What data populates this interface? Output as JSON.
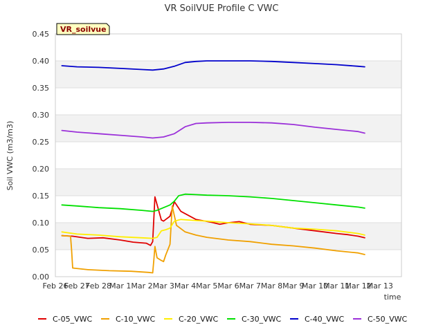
{
  "chart_data": {
    "type": "line",
    "title": "VR SoilVUE Profile C VWC",
    "xlabel": "time",
    "ylabel": "Soil VWC (m3/m3)",
    "badge": "VR_soilvue",
    "ylim": [
      0,
      0.45
    ],
    "xlim": [
      0,
      16
    ],
    "yticks": [
      0,
      0.05,
      0.1,
      0.15,
      0.2,
      0.25,
      0.3,
      0.35,
      0.4,
      0.45
    ],
    "ytick_labels": [
      "0.00",
      "0.05",
      "0.10",
      "0.15",
      "0.20",
      "0.25",
      "0.30",
      "0.35",
      "0.40",
      "0.45"
    ],
    "xticks": [
      0,
      1,
      2,
      3,
      4,
      5,
      6,
      7,
      8,
      9,
      10,
      11,
      12,
      13,
      14,
      15
    ],
    "xtick_labels": [
      "Feb 26",
      "Feb 27",
      "Feb 28",
      "Mar 1",
      "Mar 2",
      "Mar 3",
      "Mar 4",
      "Mar 5",
      "Mar 6",
      "Mar 7",
      "Mar 8",
      "Mar 9",
      "Mar 10",
      "Mar 11",
      "Mar 12",
      "Mar 13"
    ],
    "series": [
      {
        "name": "C-05_VWC",
        "color": "#e00000",
        "x": [
          0.3,
          0.8,
          1.5,
          2.2,
          3.0,
          3.6,
          4.2,
          4.3,
          4.4,
          4.5,
          4.6,
          4.9,
          5.0,
          5.1,
          5.3,
          5.5,
          5.8,
          6.5,
          7.2,
          7.6,
          8.0,
          8.5,
          9.0,
          10.0,
          11.0,
          12.0,
          13.0,
          13.5,
          14.0,
          14.3
        ],
        "y": [
          0.076,
          0.075,
          0.071,
          0.072,
          0.068,
          0.064,
          0.062,
          0.06,
          0.058,
          0.065,
          0.148,
          0.105,
          0.103,
          0.106,
          0.112,
          0.139,
          0.121,
          0.106,
          0.101,
          0.097,
          0.1,
          0.102,
          0.097,
          0.095,
          0.09,
          0.085,
          0.08,
          0.078,
          0.075,
          0.072
        ]
      },
      {
        "name": "C-10_VWC",
        "color": "#f0a000",
        "x": [
          0.3,
          0.7,
          0.75,
          0.8,
          1.5,
          2.5,
          3.5,
          4.3,
          4.5,
          4.55,
          4.6,
          4.7,
          4.9,
          5.0,
          5.1,
          5.2,
          5.3,
          5.4,
          5.6,
          6.0,
          6.5,
          7.0,
          8.0,
          9.0,
          10.0,
          11.0,
          12.0,
          13.0,
          14.0,
          14.3
        ],
        "y": [
          0.076,
          0.075,
          0.05,
          0.016,
          0.013,
          0.011,
          0.01,
          0.008,
          0.007,
          0.03,
          0.056,
          0.035,
          0.03,
          0.028,
          0.04,
          0.05,
          0.06,
          0.131,
          0.095,
          0.083,
          0.077,
          0.073,
          0.068,
          0.065,
          0.06,
          0.057,
          0.053,
          0.048,
          0.044,
          0.041
        ]
      },
      {
        "name": "C-20_VWC",
        "color": "#ffee00",
        "x": [
          0.3,
          1.0,
          2.0,
          3.0,
          4.0,
          4.5,
          4.7,
          4.9,
          5.1,
          5.3,
          5.5,
          5.8,
          6.5,
          7.0,
          8.0,
          9.0,
          10.0,
          11.0,
          12.0,
          13.0,
          14.0,
          14.3
        ],
        "y": [
          0.083,
          0.079,
          0.077,
          0.074,
          0.072,
          0.071,
          0.073,
          0.085,
          0.087,
          0.09,
          0.103,
          0.106,
          0.104,
          0.103,
          0.1,
          0.098,
          0.095,
          0.09,
          0.088,
          0.085,
          0.08,
          0.077
        ]
      },
      {
        "name": "C-30_VWC",
        "color": "#00e000",
        "x": [
          0.3,
          1.0,
          2.0,
          3.0,
          4.0,
          4.5,
          4.7,
          5.0,
          5.3,
          5.5,
          5.7,
          6.0,
          6.5,
          7.0,
          8.0,
          9.0,
          10.0,
          11.0,
          12.0,
          13.0,
          14.0,
          14.3
        ],
        "y": [
          0.133,
          0.131,
          0.128,
          0.126,
          0.123,
          0.121,
          0.123,
          0.128,
          0.133,
          0.14,
          0.15,
          0.153,
          0.152,
          0.151,
          0.15,
          0.148,
          0.145,
          0.141,
          0.137,
          0.133,
          0.129,
          0.127
        ]
      },
      {
        "name": "C-40_VWC",
        "color": "#0000cc",
        "x": [
          0.3,
          1.0,
          2.0,
          3.0,
          4.0,
          4.5,
          5.0,
          5.5,
          6.0,
          6.5,
          7.0,
          8.0,
          9.0,
          10.0,
          11.0,
          12.0,
          13.0,
          14.0,
          14.3
        ],
        "y": [
          0.391,
          0.389,
          0.388,
          0.386,
          0.384,
          0.383,
          0.385,
          0.39,
          0.397,
          0.399,
          0.4,
          0.4,
          0.4,
          0.399,
          0.397,
          0.395,
          0.393,
          0.39,
          0.389
        ]
      },
      {
        "name": "C-50_VWC",
        "color": "#9b30d9",
        "x": [
          0.3,
          1.0,
          2.0,
          3.0,
          4.0,
          4.5,
          5.0,
          5.5,
          6.0,
          6.5,
          7.0,
          8.0,
          9.0,
          10.0,
          11.0,
          12.0,
          13.0,
          14.0,
          14.3
        ],
        "y": [
          0.271,
          0.268,
          0.265,
          0.262,
          0.259,
          0.257,
          0.259,
          0.265,
          0.278,
          0.284,
          0.285,
          0.286,
          0.286,
          0.285,
          0.282,
          0.277,
          0.273,
          0.269,
          0.266
        ]
      }
    ]
  }
}
